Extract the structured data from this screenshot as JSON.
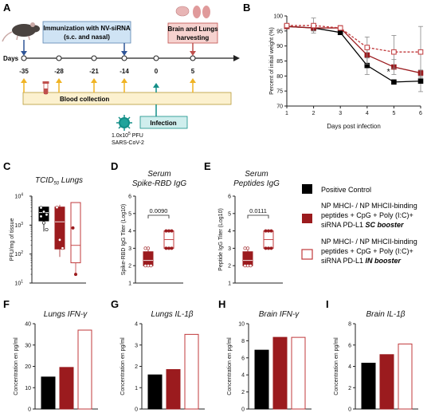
{
  "panels": {
    "A": {
      "label": "A",
      "immunization_text": [
        "Immunization with NV-siRNA",
        "(s.c. and nasal)"
      ],
      "harvest_text": [
        "Brain and Lungs",
        "harvesting"
      ],
      "days_label": "Days",
      "timeline_ticks": [
        "-35",
        "-28",
        "-21",
        "-14",
        "0",
        "5"
      ],
      "blood_label": "Blood collection",
      "infection_label": "Infection",
      "virus_dose": "1.0x10",
      "virus_dose_exp": "5",
      "virus_dose_unit": " PFU",
      "virus_name": "SARS-CoV-2"
    },
    "B": {
      "label": "B"
    },
    "C": {
      "label": "C"
    },
    "D": {
      "label": "D"
    },
    "E": {
      "label": "E"
    },
    "F": {
      "label": "F"
    },
    "G": {
      "label": "G"
    },
    "H": {
      "label": "H"
    },
    "I": {
      "label": "I"
    }
  },
  "legend": {
    "positive_control": "Positive Control",
    "sc_line1": "NP MHCI- / NP MHCII-binding",
    "sc_line2": "peptides + CpG + Poly (I:C)+",
    "sc_line3a": "siRNA PD-L1 ",
    "sc_line3b": "SC booster",
    "in_line1": "NP MHCI- / NP MHCII-binding",
    "in_line2": "peptides + CpG + Poly (I:C)+",
    "in_line3a": "siRNA PD-L1 ",
    "in_line3b": "IN booster"
  },
  "colors": {
    "black": "#000000",
    "darkred": "#9b1b1e",
    "lightred": "#c0393b"
  },
  "chart_data": [
    {
      "panel": "B",
      "type": "line",
      "xlabel": "Days post infection",
      "ylabel": "Percent of initial weight (%)",
      "x": [
        1,
        2,
        3,
        4,
        5,
        6
      ],
      "xticks": [
        "1",
        "2",
        "3",
        "4",
        "5",
        "6"
      ],
      "yticks": [
        "70",
        "75",
        "80",
        "85",
        "90",
        "95",
        "100"
      ],
      "xlim": [
        1,
        6
      ],
      "ylim": [
        70,
        100
      ],
      "annotation": "*",
      "series": [
        {
          "key": "positive_control",
          "values": [
            96.5,
            96,
            94.5,
            83.5,
            78,
            78.3
          ],
          "err": [
            0.5,
            1,
            0.5,
            3,
            0.5,
            3.5
          ]
        },
        {
          "key": "sc_booster",
          "values": [
            96.5,
            96,
            96,
            87,
            83,
            81
          ],
          "err": [
            0.5,
            1,
            0.5,
            3,
            2.5,
            1
          ]
        },
        {
          "key": "in_booster",
          "values": [
            96.8,
            96.8,
            96,
            89.5,
            88,
            88
          ],
          "err": [
            0.5,
            2.5,
            0.5,
            3.5,
            5.5,
            8.5
          ]
        }
      ]
    },
    {
      "panel": "C",
      "type": "box",
      "title_main": "TCID",
      "title_sub": "50",
      "title_rest": " Lungs",
      "ylabel": "PFU/mg of tissue",
      "yscale": "log",
      "ylim": [
        10,
        10000
      ],
      "yticks": [
        {
          "base": "10",
          "exp": "1"
        },
        {
          "base": "10",
          "exp": "2"
        },
        {
          "base": "10",
          "exp": "3"
        },
        {
          "base": "10",
          "exp": "4"
        }
      ],
      "groups": [
        {
          "key": "positive_control",
          "min": 600,
          "q1": 1400,
          "median": 2700,
          "q3": 4200,
          "max": 4200,
          "points": [
            4000,
            2900,
            2300,
            2000,
            1200,
            700
          ]
        },
        {
          "key": "sc_booster",
          "min": 80,
          "q1": 150,
          "median": 1300,
          "q3": 4200,
          "max": 5000,
          "points": [
            4100,
            310,
            160
          ]
        },
        {
          "key": "in_booster",
          "min": 20,
          "q1": 50,
          "median": 200,
          "q3": 6000,
          "max": 6000,
          "points": [
            800,
            20
          ]
        }
      ]
    },
    {
      "panel": "D",
      "type": "box",
      "title_line1": "Serum",
      "title_line2": "Spike-RBD IgG",
      "ylabel": "Spike-RBD IgG Titer (Log10)",
      "ylim": [
        1,
        6
      ],
      "yticks": [
        "1",
        "2",
        "3",
        "4",
        "5",
        "6"
      ],
      "pvalue": "0.0090",
      "groups": [
        {
          "key": "sc_booster",
          "min": 2,
          "q1": 2,
          "median": 2.3,
          "q3": 2.8,
          "max": 3,
          "points": [
            3,
            3,
            2,
            2,
            2
          ]
        },
        {
          "key": "in_booster",
          "min": 3,
          "q1": 3,
          "median": 3.5,
          "q3": 4,
          "max": 4,
          "points": [
            4,
            4,
            4,
            3,
            3,
            3
          ]
        }
      ]
    },
    {
      "panel": "E",
      "type": "box",
      "title_line1": "Serum",
      "title_line2": "Peptides IgG",
      "ylabel": "Peptide IgG Titer (Log10)",
      "ylim": [
        1,
        6
      ],
      "yticks": [
        "1",
        "2",
        "3",
        "4",
        "5",
        "6"
      ],
      "pvalue": "0.0111",
      "groups": [
        {
          "key": "sc_booster",
          "min": 2,
          "q1": 2,
          "median": 2.3,
          "q3": 2.8,
          "max": 3,
          "points": [
            3,
            3,
            2,
            2,
            2
          ]
        },
        {
          "key": "in_booster",
          "min": 3,
          "q1": 3,
          "median": 3.5,
          "q3": 4,
          "max": 4,
          "points": [
            4,
            4,
            4,
            3,
            3,
            3
          ]
        }
      ]
    },
    {
      "panel": "F",
      "type": "bar",
      "title": "Lungs IFN-γ",
      "ylabel": "Concentration en pg/ml",
      "ylim": [
        0,
        40
      ],
      "yticks": [
        "0",
        "10",
        "20",
        "30",
        "40"
      ],
      "values": [
        15,
        19.5,
        37
      ]
    },
    {
      "panel": "G",
      "type": "bar",
      "title": "Lungs IL-1β",
      "ylabel": "Concentration en pg/ml",
      "ylim": [
        0,
        4
      ],
      "yticks": [
        "0",
        "1",
        "2",
        "3",
        "4"
      ],
      "values": [
        1.6,
        1.85,
        3.5
      ]
    },
    {
      "panel": "H",
      "type": "bar",
      "title": "Brain IFN-γ",
      "ylabel": "Concentration en pg/ml",
      "ylim": [
        0,
        10
      ],
      "yticks": [
        "0",
        "2",
        "4",
        "6",
        "8",
        "10"
      ],
      "values": [
        6.9,
        8.4,
        8.4
      ]
    },
    {
      "panel": "I",
      "type": "bar",
      "title": "Brain IL-1β",
      "ylabel": "Concentration en pg/ml",
      "ylim": [
        0,
        8
      ],
      "yticks": [
        "0",
        "2",
        "4",
        "6",
        "8"
      ],
      "values": [
        4.3,
        5.1,
        6.1
      ]
    }
  ]
}
